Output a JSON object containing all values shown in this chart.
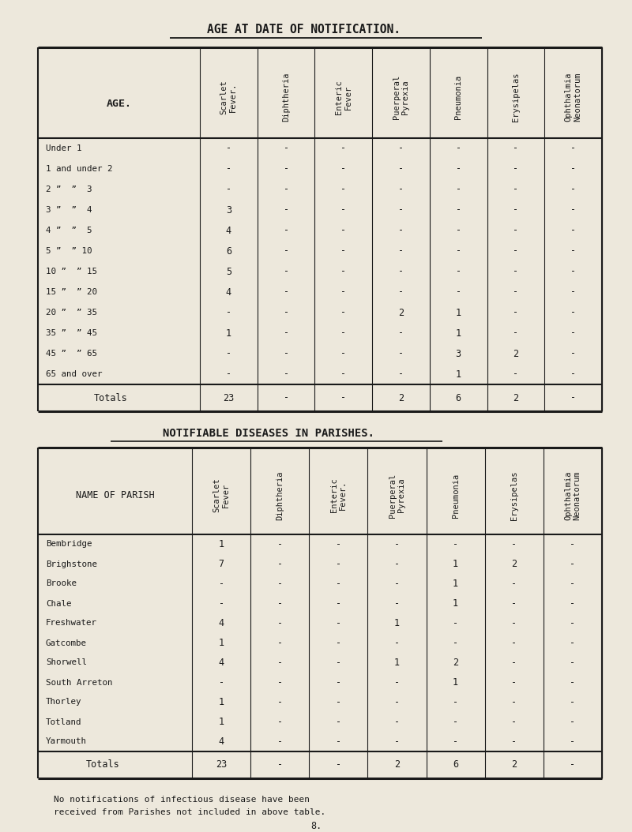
{
  "title1": "AGE AT DATE OF NOTIFICATION.",
  "title2": "NOTIFIABLE DISEASES IN PARISHES.",
  "footer_line1": "No notifications of infectious disease have been",
  "footer_line2": "received from Parishes not included in above table.",
  "page_num": "8.",
  "bg_color": "#ede8dc",
  "text_color": "#1a1a1a",
  "col_headers": [
    "Scarlet\nFever.",
    "Diphtheria",
    "Enteric\nFever",
    "Puerperal\nPyrexia",
    "Pneumonia",
    "Erysipelas",
    "Ophthalmia\nNeonatorum"
  ],
  "age_col_header": "AGE.",
  "age_rows": [
    "Under 1",
    "1 and under 2",
    "2 ”  ”  3",
    "3 ”  ”  4",
    "4 ”  ”  5",
    "5 ”  ” 10",
    "10 ”  ” 15",
    "15 ”  ” 20",
    "20 ”  ” 35",
    "35 ”  ” 45",
    "45 ”  ” 65",
    "65 and over"
  ],
  "age_data": [
    [
      "-",
      "-",
      "-",
      "-",
      "-",
      "-",
      "-"
    ],
    [
      "-",
      "-",
      "-",
      "-",
      "-",
      "-",
      "-"
    ],
    [
      "-",
      "-",
      "-",
      "-",
      "-",
      "-",
      "-"
    ],
    [
      "3",
      "-",
      "-",
      "-",
      "-",
      "-",
      "-"
    ],
    [
      "4",
      "-",
      "-",
      "-",
      "-",
      "-",
      "-"
    ],
    [
      "6",
      "-",
      "-",
      "-",
      "-",
      "-",
      "-"
    ],
    [
      "5",
      "-",
      "-",
      "-",
      "-",
      "-",
      "-"
    ],
    [
      "4",
      "-",
      "-",
      "-",
      "-",
      "-",
      "-"
    ],
    [
      "-",
      "-",
      "-",
      "2",
      "1",
      "-",
      "-"
    ],
    [
      "1",
      "-",
      "-",
      "-",
      "1",
      "-",
      "-"
    ],
    [
      "-",
      "-",
      "-",
      "-",
      "3",
      "2",
      "-"
    ],
    [
      "-",
      "-",
      "-",
      "-",
      "1",
      "-",
      "-"
    ]
  ],
  "age_totals": [
    "23",
    "-",
    "-",
    "2",
    "6",
    "2",
    "-"
  ],
  "parish_col_header": "NAME OF PARISH",
  "parish_col_headers": [
    "Scarlet\nFever",
    "Diphtheria",
    "Enteric\nFever.",
    "Puerperal\nPyrexia",
    "Pneumonia",
    "Erysipelas",
    "Ophthalmia\nNeonatorum"
  ],
  "parishes": [
    "Bembridge",
    "Brighstone",
    "Brooke",
    "Chale",
    "Freshwater",
    "Gatcombe",
    "Shorwell",
    "South Arreton",
    "Thorley",
    "Totland",
    "Yarmouth"
  ],
  "parish_data": [
    [
      "1",
      "-",
      "-",
      "-",
      "-",
      "-",
      "-"
    ],
    [
      "7",
      "-",
      "-",
      "-",
      "1",
      "2",
      "-"
    ],
    [
      "-",
      "-",
      "-",
      "-",
      "1",
      "-",
      "-"
    ],
    [
      "-",
      "-",
      "-",
      "-",
      "1",
      "-",
      "-"
    ],
    [
      "4",
      "-",
      "-",
      "1",
      "-",
      "-",
      "-"
    ],
    [
      "1",
      "-",
      "-",
      "-",
      "-",
      "-",
      "-"
    ],
    [
      "4",
      "-",
      "-",
      "1",
      "2",
      "-",
      "-"
    ],
    [
      "-",
      "-",
      "-",
      "-",
      "1",
      "-",
      "-"
    ],
    [
      "1",
      "-",
      "-",
      "-",
      "-",
      "-",
      "-"
    ],
    [
      "1",
      "-",
      "-",
      "-",
      "-",
      "-",
      "-"
    ],
    [
      "4",
      "-",
      "-",
      "-",
      "-",
      "-",
      "-"
    ]
  ],
  "parish_totals": [
    "23",
    "-",
    "-",
    "2",
    "6",
    "2",
    "-"
  ]
}
